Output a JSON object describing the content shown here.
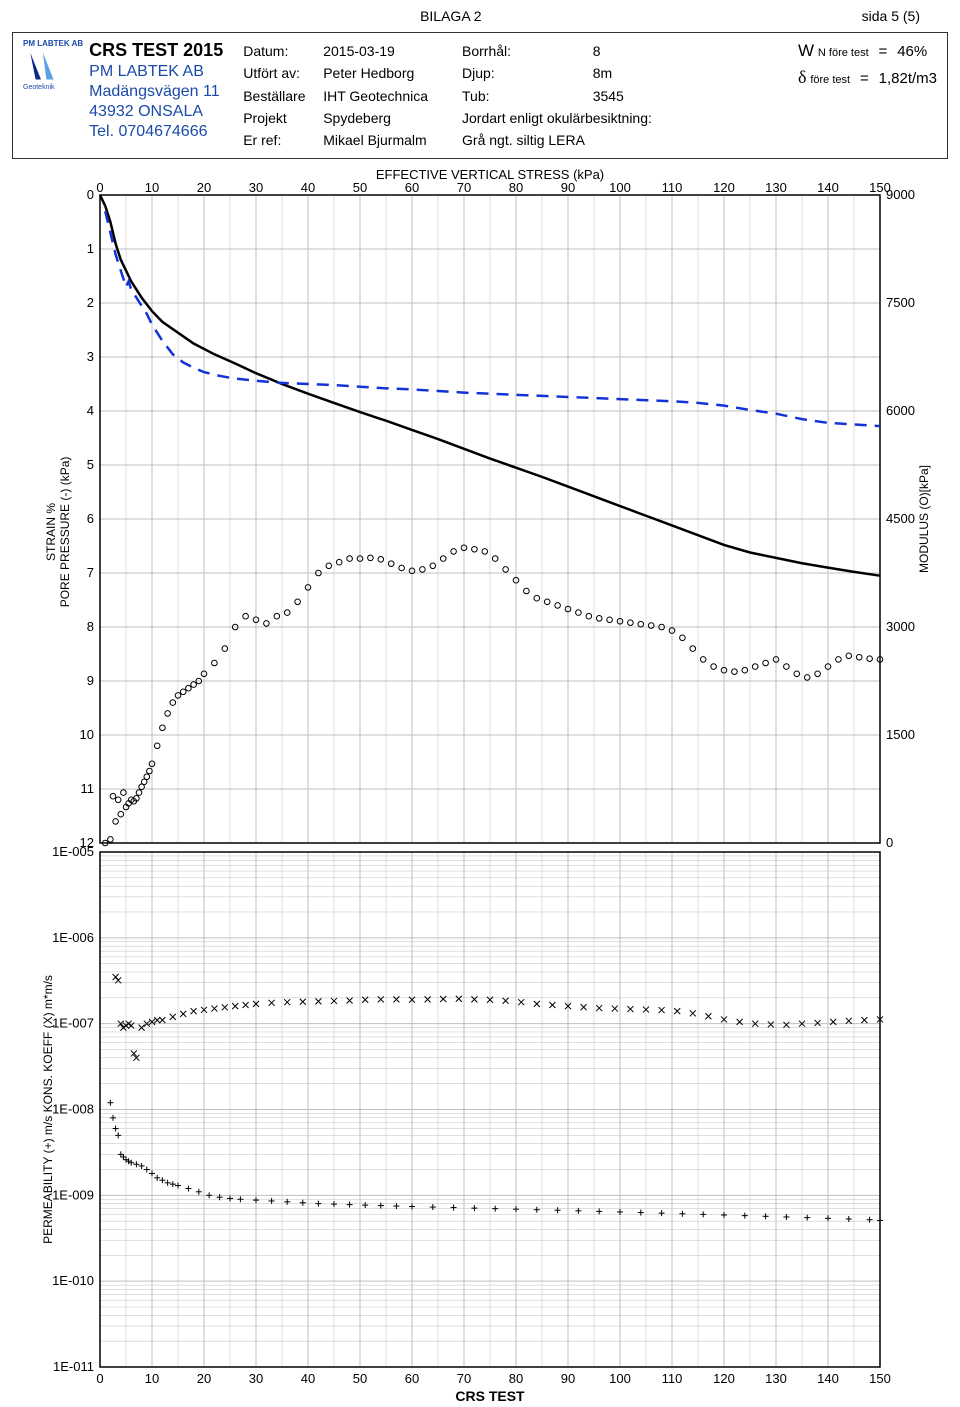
{
  "header": {
    "center": "BILAGA 2",
    "right": "sida 5 (5)"
  },
  "company": {
    "logo_text": "PM LABTEK AB",
    "logo_sub": "Geoteknik",
    "title": "CRS TEST 2015",
    "lines": [
      "PM LABTEK AB",
      "Madängsvägen 11",
      "43932 ONSALA",
      "Tel. 0704674666"
    ]
  },
  "meta1": {
    "datum_l": "Datum:",
    "datum_v": "2015-03-19",
    "utf_l": "Utfört av:",
    "utf_v": "Peter Hedborg",
    "best_l": "Beställare",
    "best_v": "IHT Geotechnica",
    "proj_l": "Projekt",
    "proj_v": "Spydeberg",
    "ref_l": "Er ref:",
    "ref_v": "Mikael Bjurmalm"
  },
  "meta2": {
    "bh_l": "Borrhål:",
    "bh_v": "8",
    "dj_l": "Djup:",
    "dj_v": "8m",
    "tub_l": "Tub:",
    "tub_v": "3545",
    "jord_l": "Jordart enligt okulärbesiktning:",
    "jord_v": "Grå ngt. siltig LERA"
  },
  "meta3": {
    "w_pre": "W",
    "w_sub": "N före test",
    "w_eq": "=",
    "w_v": "46%",
    "d_sym": "δ",
    "d_sub": "före test",
    "d_eq": "=",
    "d_v": "1,82t/m3"
  },
  "chart1": {
    "x_title": "EFFECTIVE VERTICAL STRESS (kPa)",
    "x_min": 0,
    "x_max": 150,
    "x_step": 10,
    "y_left_title": "STRAIN %\nPORE PRESSURE (-) (kPa)",
    "y_left_min": 0,
    "y_left_max": 12,
    "y_left_step": 1,
    "y_right_title": "MODULUS (O)[kPa]",
    "y_right_min": 0,
    "y_right_max": 9000,
    "y_right_step": 1500,
    "grid_color": "#bfbfbf",
    "colors": {
      "strain": "#000000",
      "pore": "#1433d6",
      "modulus": "#000000"
    },
    "strain_line": [
      [
        0,
        0
      ],
      [
        1,
        0.2
      ],
      [
        2,
        0.5
      ],
      [
        3,
        0.9
      ],
      [
        4,
        1.2
      ],
      [
        5,
        1.4
      ],
      [
        6,
        1.6
      ],
      [
        8,
        1.9
      ],
      [
        10,
        2.15
      ],
      [
        12,
        2.35
      ],
      [
        15,
        2.55
      ],
      [
        18,
        2.75
      ],
      [
        22,
        2.95
      ],
      [
        26,
        3.12
      ],
      [
        30,
        3.3
      ],
      [
        35,
        3.5
      ],
      [
        40,
        3.68
      ],
      [
        45,
        3.85
      ],
      [
        50,
        4.02
      ],
      [
        55,
        4.18
      ],
      [
        60,
        4.35
      ],
      [
        65,
        4.52
      ],
      [
        70,
        4.7
      ],
      [
        75,
        4.88
      ],
      [
        80,
        5.05
      ],
      [
        85,
        5.22
      ],
      [
        90,
        5.4
      ],
      [
        95,
        5.58
      ],
      [
        100,
        5.76
      ],
      [
        105,
        5.94
      ],
      [
        110,
        6.12
      ],
      [
        115,
        6.3
      ],
      [
        120,
        6.48
      ],
      [
        125,
        6.62
      ],
      [
        130,
        6.72
      ],
      [
        135,
        6.82
      ],
      [
        140,
        6.9
      ],
      [
        145,
        6.98
      ],
      [
        150,
        7.05
      ]
    ],
    "pore_line": [
      [
        1,
        0.3
      ],
      [
        2,
        0.7
      ],
      [
        3,
        1.1
      ],
      [
        4,
        1.4
      ],
      [
        4.5,
        1.55
      ],
      [
        5,
        1.7
      ],
      [
        5.5,
        1.6
      ],
      [
        6,
        1.75
      ],
      [
        7,
        1.9
      ],
      [
        8,
        2.05
      ],
      [
        9,
        2.2
      ],
      [
        10,
        2.4
      ],
      [
        12,
        2.7
      ],
      [
        14,
        2.95
      ],
      [
        16,
        3.1
      ],
      [
        18,
        3.2
      ],
      [
        20,
        3.28
      ],
      [
        23,
        3.35
      ],
      [
        26,
        3.4
      ],
      [
        30,
        3.44
      ],
      [
        35,
        3.48
      ],
      [
        40,
        3.5
      ],
      [
        45,
        3.52
      ],
      [
        50,
        3.55
      ],
      [
        55,
        3.58
      ],
      [
        60,
        3.6
      ],
      [
        65,
        3.63
      ],
      [
        70,
        3.66
      ],
      [
        75,
        3.68
      ],
      [
        80,
        3.7
      ],
      [
        85,
        3.72
      ],
      [
        90,
        3.74
      ],
      [
        95,
        3.76
      ],
      [
        100,
        3.78
      ],
      [
        105,
        3.8
      ],
      [
        110,
        3.82
      ],
      [
        115,
        3.85
      ],
      [
        120,
        3.9
      ],
      [
        125,
        3.98
      ],
      [
        130,
        4.05
      ],
      [
        135,
        4.15
      ],
      [
        140,
        4.22
      ],
      [
        145,
        4.25
      ],
      [
        150,
        4.28
      ]
    ],
    "modulus_pts": [
      [
        1,
        0
      ],
      [
        2,
        50
      ],
      [
        2.5,
        650
      ],
      [
        3,
        300
      ],
      [
        3.5,
        600
      ],
      [
        4,
        400
      ],
      [
        4.5,
        700
      ],
      [
        5,
        500
      ],
      [
        5.5,
        550
      ],
      [
        6,
        600
      ],
      [
        6.5,
        580
      ],
      [
        7,
        620
      ],
      [
        7.5,
        700
      ],
      [
        8,
        780
      ],
      [
        8.5,
        850
      ],
      [
        9,
        920
      ],
      [
        9.5,
        1000
      ],
      [
        10,
        1100
      ],
      [
        11,
        1350
      ],
      [
        12,
        1600
      ],
      [
        13,
        1800
      ],
      [
        14,
        1950
      ],
      [
        15,
        2050
      ],
      [
        16,
        2100
      ],
      [
        17,
        2150
      ],
      [
        18,
        2200
      ],
      [
        19,
        2250
      ],
      [
        20,
        2350
      ],
      [
        22,
        2500
      ],
      [
        24,
        2700
      ],
      [
        26,
        3000
      ],
      [
        28,
        3150
      ],
      [
        30,
        3100
      ],
      [
        32,
        3050
      ],
      [
        34,
        3150
      ],
      [
        36,
        3200
      ],
      [
        38,
        3350
      ],
      [
        40,
        3550
      ],
      [
        42,
        3750
      ],
      [
        44,
        3850
      ],
      [
        46,
        3900
      ],
      [
        48,
        3950
      ],
      [
        50,
        3950
      ],
      [
        52,
        3960
      ],
      [
        54,
        3940
      ],
      [
        56,
        3880
      ],
      [
        58,
        3820
      ],
      [
        60,
        3780
      ],
      [
        62,
        3800
      ],
      [
        64,
        3850
      ],
      [
        66,
        3950
      ],
      [
        68,
        4050
      ],
      [
        70,
        4100
      ],
      [
        72,
        4080
      ],
      [
        74,
        4050
      ],
      [
        76,
        3950
      ],
      [
        78,
        3800
      ],
      [
        80,
        3650
      ],
      [
        82,
        3500
      ],
      [
        84,
        3400
      ],
      [
        86,
        3350
      ],
      [
        88,
        3300
      ],
      [
        90,
        3250
      ],
      [
        92,
        3200
      ],
      [
        94,
        3150
      ],
      [
        96,
        3120
      ],
      [
        98,
        3100
      ],
      [
        100,
        3080
      ],
      [
        102,
        3060
      ],
      [
        104,
        3040
      ],
      [
        106,
        3020
      ],
      [
        108,
        3000
      ],
      [
        110,
        2950
      ],
      [
        112,
        2850
      ],
      [
        114,
        2700
      ],
      [
        116,
        2550
      ],
      [
        118,
        2450
      ],
      [
        120,
        2400
      ],
      [
        122,
        2380
      ],
      [
        124,
        2400
      ],
      [
        126,
        2450
      ],
      [
        128,
        2500
      ],
      [
        130,
        2550
      ],
      [
        132,
        2450
      ],
      [
        134,
        2350
      ],
      [
        136,
        2300
      ],
      [
        138,
        2350
      ],
      [
        140,
        2450
      ],
      [
        142,
        2550
      ],
      [
        144,
        2600
      ],
      [
        146,
        2580
      ],
      [
        148,
        2560
      ],
      [
        150,
        2550
      ]
    ]
  },
  "chart2": {
    "y_title": "PERMEABILITY (+) m/s KONS. KOEFF (X)  m*m/s",
    "x_min": 0,
    "x_max": 150,
    "x_step": 10,
    "x_title": "CRS TEST",
    "y_exp_min": -11,
    "y_exp_max": -5,
    "y_labels": [
      "1E-005",
      "1E-006",
      "1E-007",
      "1E-008",
      "1E-009",
      "1E-010",
      "1E-011"
    ],
    "grid_color": "#bfbfbf",
    "kons_pts": [
      [
        3,
        3.5e-07
      ],
      [
        3.5,
        3.2e-07
      ],
      [
        4,
        1e-07
      ],
      [
        4.5,
        9e-08
      ],
      [
        5,
        9.5e-08
      ],
      [
        5.5,
        1e-07
      ],
      [
        6,
        9.5e-08
      ],
      [
        6.5,
        4.5e-08
      ],
      [
        7,
        4e-08
      ],
      [
        8,
        9e-08
      ],
      [
        9,
        1e-07
      ],
      [
        10,
        1.05e-07
      ],
      [
        11,
        1.1e-07
      ],
      [
        12,
        1.1e-07
      ],
      [
        14,
        1.2e-07
      ],
      [
        16,
        1.3e-07
      ],
      [
        18,
        1.4e-07
      ],
      [
        20,
        1.45e-07
      ],
      [
        22,
        1.5e-07
      ],
      [
        24,
        1.55e-07
      ],
      [
        26,
        1.6e-07
      ],
      [
        28,
        1.65e-07
      ],
      [
        30,
        1.7e-07
      ],
      [
        33,
        1.75e-07
      ],
      [
        36,
        1.78e-07
      ],
      [
        39,
        1.8e-07
      ],
      [
        42,
        1.82e-07
      ],
      [
        45,
        1.84e-07
      ],
      [
        48,
        1.86e-07
      ],
      [
        51,
        1.9e-07
      ],
      [
        54,
        1.92e-07
      ],
      [
        57,
        1.92e-07
      ],
      [
        60,
        1.9e-07
      ],
      [
        63,
        1.92e-07
      ],
      [
        66,
        1.94e-07
      ],
      [
        69,
        1.95e-07
      ],
      [
        72,
        1.92e-07
      ],
      [
        75,
        1.9e-07
      ],
      [
        78,
        1.85e-07
      ],
      [
        81,
        1.78e-07
      ],
      [
        84,
        1.7e-07
      ],
      [
        87,
        1.65e-07
      ],
      [
        90,
        1.6e-07
      ],
      [
        93,
        1.56e-07
      ],
      [
        96,
        1.52e-07
      ],
      [
        99,
        1.5e-07
      ],
      [
        102,
        1.48e-07
      ],
      [
        105,
        1.46e-07
      ],
      [
        108,
        1.44e-07
      ],
      [
        111,
        1.4e-07
      ],
      [
        114,
        1.32e-07
      ],
      [
        117,
        1.22e-07
      ],
      [
        120,
        1.12e-07
      ],
      [
        123,
        1.05e-07
      ],
      [
        126,
        1e-07
      ],
      [
        129,
        9.8e-08
      ],
      [
        132,
        9.7e-08
      ],
      [
        135,
        1e-07
      ],
      [
        138,
        1.02e-07
      ],
      [
        141,
        1.05e-07
      ],
      [
        144,
        1.08e-07
      ],
      [
        147,
        1.1e-07
      ],
      [
        150,
        1.12e-07
      ]
    ],
    "perm_pts": [
      [
        2,
        1.2e-08
      ],
      [
        2.5,
        8e-09
      ],
      [
        3,
        6e-09
      ],
      [
        3.5,
        5e-09
      ],
      [
        4,
        3e-09
      ],
      [
        4.5,
        2.8e-09
      ],
      [
        5,
        2.6e-09
      ],
      [
        5.5,
        2.5e-09
      ],
      [
        6,
        2.4e-09
      ],
      [
        7,
        2.3e-09
      ],
      [
        8,
        2.2e-09
      ],
      [
        9,
        2e-09
      ],
      [
        10,
        1.8e-09
      ],
      [
        11,
        1.6e-09
      ],
      [
        12,
        1.5e-09
      ],
      [
        13,
        1.4e-09
      ],
      [
        14,
        1.35e-09
      ],
      [
        15,
        1.3e-09
      ],
      [
        17,
        1.2e-09
      ],
      [
        19,
        1.1e-09
      ],
      [
        21,
        1e-09
      ],
      [
        23,
        9.5e-10
      ],
      [
        25,
        9.2e-10
      ],
      [
        27,
        9e-10
      ],
      [
        30,
        8.8e-10
      ],
      [
        33,
        8.6e-10
      ],
      [
        36,
        8.4e-10
      ],
      [
        39,
        8.2e-10
      ],
      [
        42,
        8e-10
      ],
      [
        45,
        7.9e-10
      ],
      [
        48,
        7.8e-10
      ],
      [
        51,
        7.7e-10
      ],
      [
        54,
        7.6e-10
      ],
      [
        57,
        7.5e-10
      ],
      [
        60,
        7.4e-10
      ],
      [
        64,
        7.3e-10
      ],
      [
        68,
        7.2e-10
      ],
      [
        72,
        7.1e-10
      ],
      [
        76,
        7e-10
      ],
      [
        80,
        6.9e-10
      ],
      [
        84,
        6.8e-10
      ],
      [
        88,
        6.7e-10
      ],
      [
        92,
        6.6e-10
      ],
      [
        96,
        6.5e-10
      ],
      [
        100,
        6.4e-10
      ],
      [
        104,
        6.3e-10
      ],
      [
        108,
        6.2e-10
      ],
      [
        112,
        6.1e-10
      ],
      [
        116,
        6e-10
      ],
      [
        120,
        5.9e-10
      ],
      [
        124,
        5.8e-10
      ],
      [
        128,
        5.7e-10
      ],
      [
        132,
        5.6e-10
      ],
      [
        136,
        5.5e-10
      ],
      [
        140,
        5.4e-10
      ],
      [
        144,
        5.3e-10
      ],
      [
        148,
        5.2e-10
      ],
      [
        150,
        5.1e-10
      ]
    ]
  }
}
